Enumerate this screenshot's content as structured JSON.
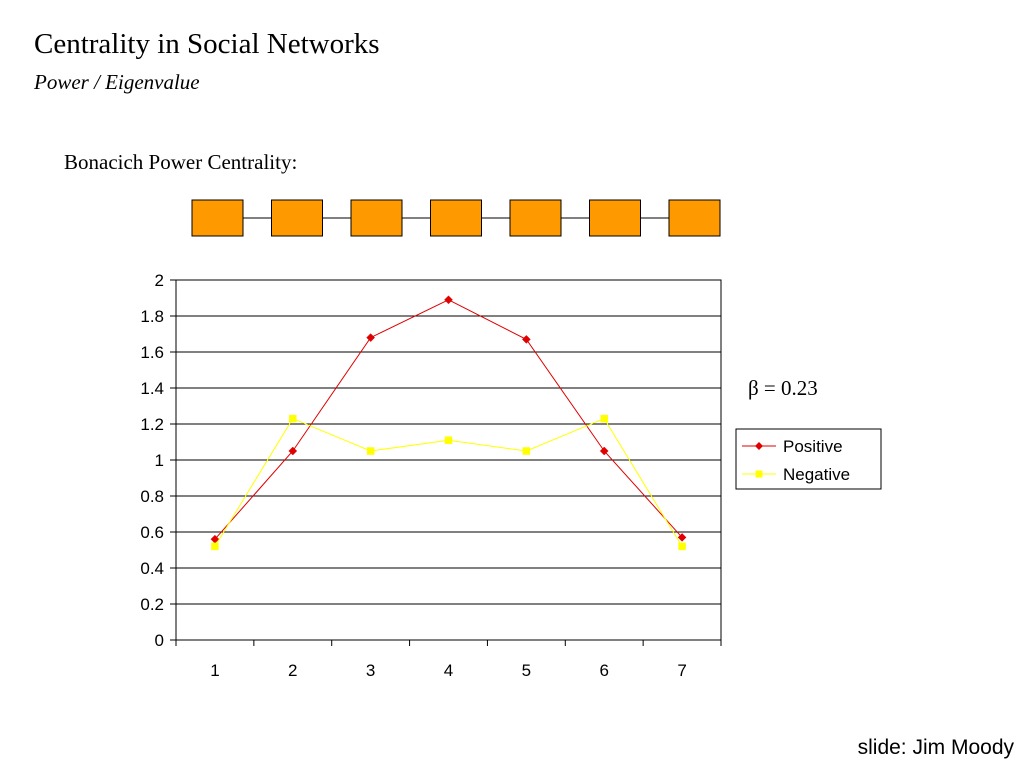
{
  "slide": {
    "title": "Centrality in Social Networks",
    "subtitle": "Power / Eigenvalue",
    "heading": "Bonacich Power Centrality:",
    "beta_label": "β = 0.23",
    "credit": "slide: Jim Moody"
  },
  "network": {
    "node_count": 7,
    "node_color": "#FF9900",
    "edge_color": "#000000"
  },
  "chart_data": {
    "type": "line",
    "x": [
      1,
      2,
      3,
      4,
      5,
      6,
      7
    ],
    "xlim": [
      1,
      7
    ],
    "ylim": [
      0,
      2
    ],
    "yticks": [
      0,
      0.2,
      0.4,
      0.6,
      0.8,
      1,
      1.2,
      1.4,
      1.6,
      1.8,
      2
    ],
    "ytick_labels": [
      "0",
      "0.2",
      "0.4",
      "0.6",
      "0.8",
      "1",
      "1.2",
      "1.4",
      "1.6",
      "1.8",
      "2"
    ],
    "grid": "horizontal",
    "legend_position": "right",
    "series": [
      {
        "name": "Positive",
        "color": "#E00000",
        "marker": "diamond",
        "values": [
          0.56,
          1.05,
          1.68,
          1.89,
          1.67,
          1.05,
          0.57
        ]
      },
      {
        "name": "Negative",
        "color": "#FFFF00",
        "marker": "square",
        "values": [
          0.52,
          1.23,
          1.05,
          1.11,
          1.05,
          1.23,
          0.52
        ]
      }
    ]
  }
}
